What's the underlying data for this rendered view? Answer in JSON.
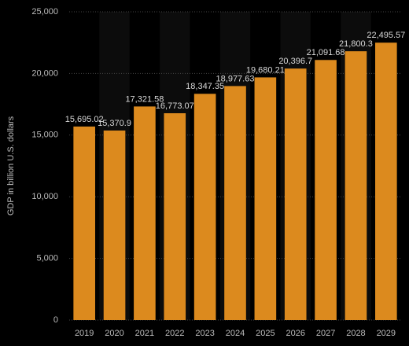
{
  "chart_data": {
    "type": "bar",
    "y_label": "GDP in billion U.S. dollars",
    "categories": [
      "2019",
      "2020",
      "2021",
      "2022",
      "2023",
      "2024",
      "2025",
      "2026",
      "2027",
      "2028",
      "2029"
    ],
    "values": [
      15695.02,
      15370.9,
      17321.58,
      16773.07,
      18347.35,
      18977.63,
      19680.21,
      20396.7,
      21091.68,
      21800.3,
      22495.57
    ],
    "value_labels": [
      "15,695.02",
      "15,370.9",
      "17,321.58",
      "16,773.07",
      "18,347.35",
      "18,977.63",
      "19,680.21",
      "20,396.7",
      "21,091.68",
      "21,800.3",
      "22,495.57"
    ],
    "color": "#dc8a1e",
    "ylim": [
      0,
      25000
    ],
    "yticks": [
      0,
      {
        "value": 5000,
        "label": "5,000"
      },
      {
        "value": 10000,
        "label": "10,000"
      },
      {
        "value": 15000,
        "label": "15,000"
      },
      {
        "value": 20000,
        "label": "20,000"
      },
      {
        "value": 25000,
        "label": "25,000"
      }
    ],
    "grid": true
  }
}
